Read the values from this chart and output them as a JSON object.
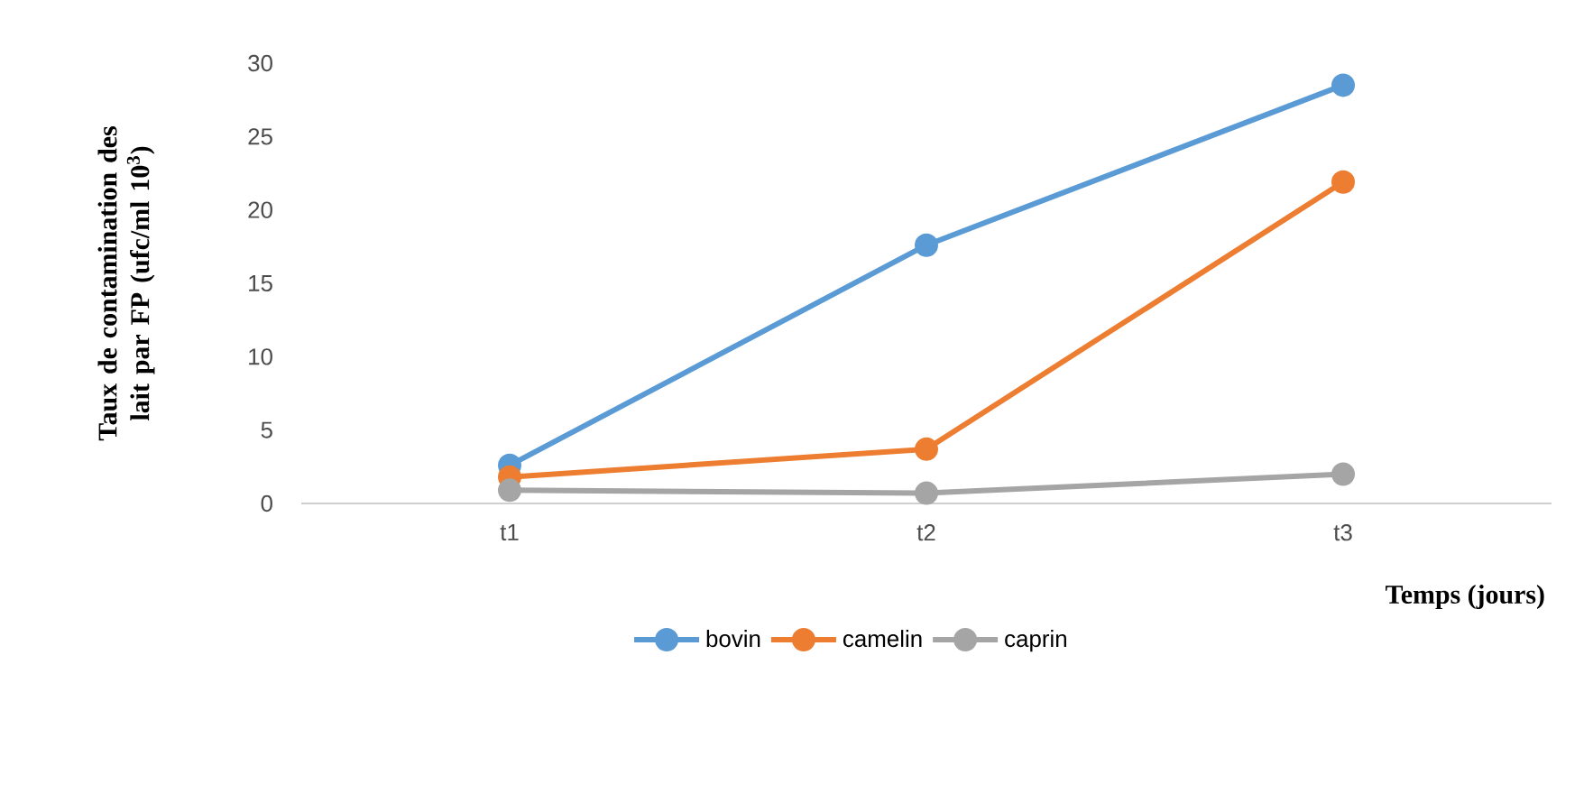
{
  "chart_data": {
    "type": "line",
    "ylabel": "Taux de contamination des lait par FP (ufc/ml 10$^{3}$)",
    "xlabel": "Temps (jours)",
    "categories": [
      "t1",
      "t2",
      "t3"
    ],
    "series": [
      {
        "name": "bovin",
        "color": "#5b9bd5",
        "values": [
          2.6,
          17.6,
          28.5
        ]
      },
      {
        "name": "camelin",
        "color": "#ed7d31",
        "values": [
          1.8,
          3.7,
          21.9
        ]
      },
      {
        "name": "caprin",
        "color": "#a5a5a5",
        "values": [
          0.9,
          0.7,
          2.0
        ]
      }
    ],
    "ylim": [
      0,
      30
    ],
    "yticks": [
      0,
      5,
      10,
      15,
      20,
      25,
      30
    ],
    "grid": false,
    "legend": "bottom",
    "marker": "circle",
    "line_style": "solid"
  }
}
